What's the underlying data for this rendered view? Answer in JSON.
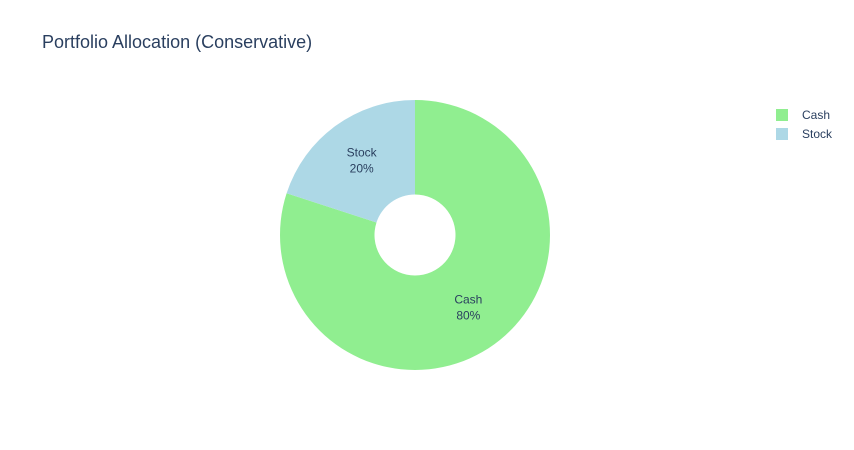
{
  "chart_data": {
    "type": "pie",
    "title": "Portfolio Allocation (Conservative)",
    "hole": 0.3,
    "labels": [
      "Cash",
      "Stock"
    ],
    "values": [
      80,
      20
    ],
    "percent_labels": [
      "80%",
      "20%"
    ],
    "colors": [
      "#90ee90",
      "#add8e6"
    ],
    "legend_position": "top-right",
    "legend": [
      {
        "label": "Cash",
        "color": "#90ee90"
      },
      {
        "label": "Stock",
        "color": "#add8e6"
      }
    ]
  }
}
